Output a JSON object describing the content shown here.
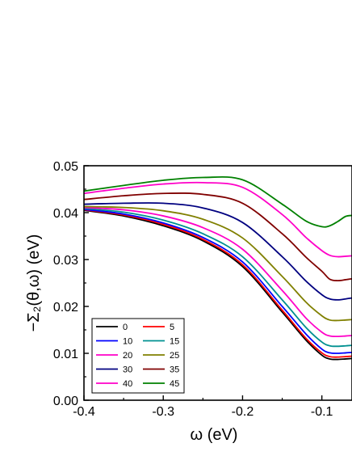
{
  "chart_data": {
    "type": "line",
    "xlabel": "ω (eV)",
    "ylabel": "−Σ₂(θ,ω) (eV)",
    "xlim": [
      -0.4,
      -0.062
    ],
    "ylim": [
      0.0,
      0.05
    ],
    "xticks": [
      -0.4,
      -0.3,
      -0.2,
      -0.1
    ],
    "xtick_labels": [
      "-0.4",
      "-0.3",
      "-0.2",
      "-0.1"
    ],
    "yticks": [
      0.0,
      0.01,
      0.02,
      0.03,
      0.04,
      0.05
    ],
    "ytick_labels": [
      "0.00",
      "0.01",
      "0.02",
      "0.03",
      "0.04",
      "0.05"
    ],
    "grid": false,
    "legend_position": "bottom-left",
    "x": [
      -0.4,
      -0.35,
      -0.3,
      -0.25,
      -0.2,
      -0.15,
      -0.12,
      -0.1,
      -0.09,
      -0.08,
      -0.07,
      -0.062
    ],
    "series": [
      {
        "name": "0",
        "color": "#000000",
        "values": [
          0.0405,
          0.0393,
          0.0372,
          0.034,
          0.0285,
          0.0188,
          0.0128,
          0.0096,
          0.0088,
          0.0087,
          0.0088,
          0.0089
        ]
      },
      {
        "name": "5",
        "color": "#ff0000",
        "values": [
          0.0406,
          0.0395,
          0.0375,
          0.0343,
          0.0289,
          0.0192,
          0.0132,
          0.0101,
          0.0093,
          0.0092,
          0.0093,
          0.0094
        ]
      },
      {
        "name": "10",
        "color": "#0000ff",
        "values": [
          0.0407,
          0.0397,
          0.0378,
          0.0347,
          0.0295,
          0.02,
          0.0141,
          0.0109,
          0.0101,
          0.01,
          0.0101,
          0.0102
        ]
      },
      {
        "name": "15",
        "color": "#009090",
        "values": [
          0.0409,
          0.0401,
          0.0384,
          0.0355,
          0.0306,
          0.0214,
          0.0155,
          0.0124,
          0.0116,
          0.0115,
          0.0116,
          0.0117
        ]
      },
      {
        "name": "20",
        "color": "#ff00c8",
        "values": [
          0.0411,
          0.0406,
          0.0393,
          0.0368,
          0.0322,
          0.0234,
          0.0175,
          0.0145,
          0.0137,
          0.0136,
          0.0137,
          0.0138
        ]
      },
      {
        "name": "25",
        "color": "#808000",
        "values": [
          0.0413,
          0.0411,
          0.0404,
          0.0386,
          0.0346,
          0.0264,
          0.0209,
          0.018,
          0.0171,
          0.017,
          0.0171,
          0.0172
        ]
      },
      {
        "name": "30",
        "color": "#000080",
        "values": [
          0.0418,
          0.042,
          0.042,
          0.041,
          0.0379,
          0.0306,
          0.0254,
          0.0225,
          0.0216,
          0.0214,
          0.0216,
          0.0218
        ]
      },
      {
        "name": "35",
        "color": "#800000",
        "values": [
          0.0428,
          0.0436,
          0.0441,
          0.0439,
          0.042,
          0.0355,
          0.0305,
          0.0275,
          0.0258,
          0.0255,
          0.0257,
          0.0259
        ]
      },
      {
        "name": "40",
        "color": "#ff00c8",
        "values": [
          0.0441,
          0.0452,
          0.0461,
          0.0464,
          0.0454,
          0.0396,
          0.0347,
          0.0319,
          0.0309,
          0.0306,
          0.0307,
          0.0308
        ]
      },
      {
        "name": "45",
        "color": "#008000",
        "values": [
          0.0446,
          0.0458,
          0.0469,
          0.0475,
          0.047,
          0.0418,
          0.0382,
          0.037,
          0.0372,
          0.0381,
          0.0392,
          0.0394
        ]
      }
    ]
  }
}
